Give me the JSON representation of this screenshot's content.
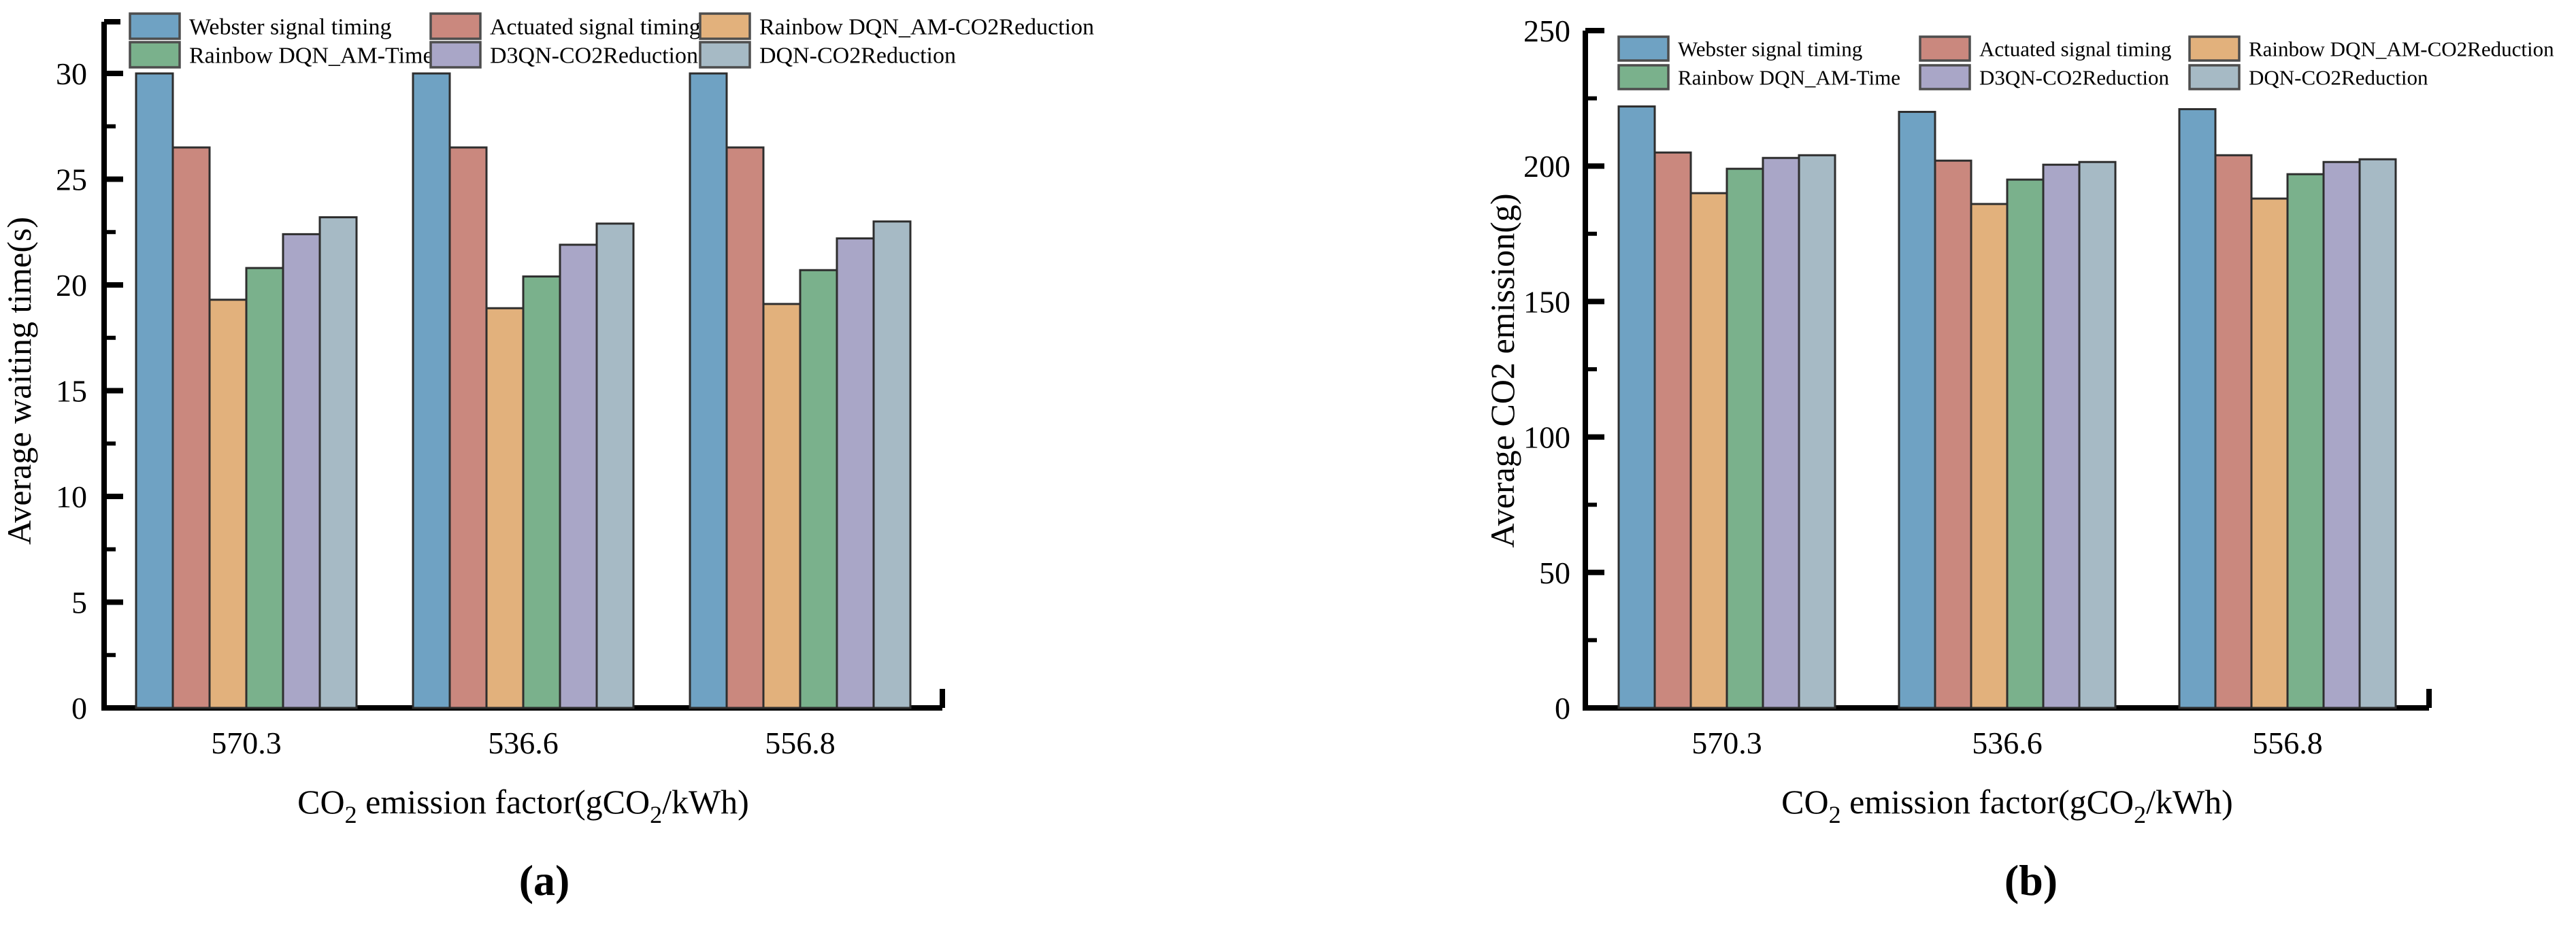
{
  "figure": {
    "caption_a": "(a)",
    "caption_b": "(b)",
    "background": "#ffffff",
    "text_color": "#000000",
    "bar_edge_color": "#2e2e2e",
    "legend_swatch_border": "#4d4d4d",
    "axis_color": "#000000"
  },
  "chart_data": [
    {
      "type": "bar",
      "panel": "a",
      "ylabel": "Average waiting time(s)",
      "xlabel_rich": [
        {
          "text": "CO"
        },
        {
          "text": "2",
          "sub": true
        },
        {
          "text": " emission factor(gCO"
        },
        {
          "text": "2",
          "sub": true
        },
        {
          "text": "/kWh)"
        }
      ],
      "categories": [
        "570.3",
        "536.6",
        "556.8"
      ],
      "ylim": [
        0,
        30
      ],
      "yticks": [
        0,
        5,
        10,
        15,
        20,
        25,
        30
      ],
      "minor_tick_step": 2.5,
      "grid": false,
      "legend_position": "top-left, 2 rows x 3 cols",
      "series": [
        {
          "name": "Webster signal timing",
          "color": "#6fa2c3",
          "values": [
            30.0,
            30.0,
            30.0
          ]
        },
        {
          "name": "Actuated signal timing",
          "color": "#ca887e",
          "values": [
            26.5,
            26.5,
            26.5
          ]
        },
        {
          "name": "Rainbow DQN_AM-CO2Reduction",
          "color": "#e2b17c",
          "values": [
            19.3,
            18.9,
            19.1
          ]
        },
        {
          "name": "Rainbow DQN_AM-Time",
          "color": "#7ab18c",
          "values": [
            20.8,
            20.4,
            20.7
          ]
        },
        {
          "name": "D3QN-CO2Reduction",
          "color": "#a9a6c7",
          "values": [
            22.4,
            21.9,
            22.2
          ]
        },
        {
          "name": "DQN-CO2Reduction",
          "color": "#a6bac5",
          "values": [
            23.2,
            22.9,
            23.0
          ]
        }
      ]
    },
    {
      "type": "bar",
      "panel": "b",
      "ylabel": "Average CO2 emission(g)",
      "xlabel_rich": [
        {
          "text": "CO"
        },
        {
          "text": "2",
          "sub": true
        },
        {
          "text": " emission factor(gCO"
        },
        {
          "text": "2",
          "sub": true
        },
        {
          "text": "/kWh)"
        }
      ],
      "categories": [
        "570.3",
        "536.6",
        "556.8"
      ],
      "ylim": [
        0,
        250
      ],
      "yticks": [
        0,
        50,
        100,
        150,
        200,
        250
      ],
      "minor_tick_step": 25,
      "grid": false,
      "legend_position": "top-left, 2 rows x 3 cols",
      "series": [
        {
          "name": "Webster signal timing",
          "color": "#6fa2c3",
          "values": [
            222,
            220,
            221
          ]
        },
        {
          "name": "Actuated signal timing",
          "color": "#ca887e",
          "values": [
            205,
            202,
            204
          ]
        },
        {
          "name": "Rainbow DQN_AM-CO2Reduction",
          "color": "#e2b17c",
          "values": [
            190,
            186,
            188
          ]
        },
        {
          "name": "Rainbow DQN_AM-Time",
          "color": "#7ab18c",
          "values": [
            199,
            195,
            197
          ]
        },
        {
          "name": "D3QN-CO2Reduction",
          "color": "#a9a6c7",
          "values": [
            203,
            200.5,
            201.5
          ]
        },
        {
          "name": "DQN-CO2Reduction",
          "color": "#a6bac5",
          "values": [
            204,
            201.5,
            202.5
          ]
        }
      ]
    }
  ]
}
